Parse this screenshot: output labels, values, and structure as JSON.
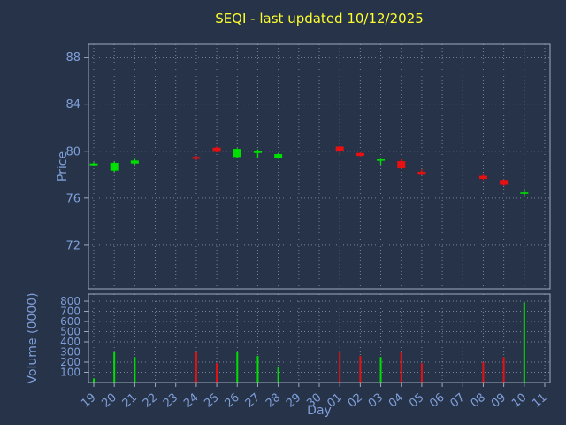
{
  "title": "SEQI - last updated 10/12/2025",
  "axes": {
    "price_label": "Price",
    "volume_label": "Volume (0000)",
    "x_label": "Day"
  },
  "colors": {
    "background": "#273349",
    "grid": "#cfd6e0",
    "border": "#9fabbd",
    "tick_text": "#7e9fd8",
    "title_text": "#ffff2e",
    "up": "#00e000",
    "down": "#e81010"
  },
  "chart_data": {
    "type": "candlestick",
    "title": "SEQI - last updated 10/12/2025",
    "xlabel": "Day",
    "ylabel_price": "Price",
    "ylabel_volume": "Volume (0000)",
    "legend": "none",
    "grid": "dotted",
    "x_ticklabels": [
      "19",
      "20",
      "21",
      "22",
      "23",
      "24",
      "25",
      "26",
      "27",
      "28",
      "29",
      "30",
      "01",
      "02",
      "03",
      "04",
      "05",
      "06",
      "07",
      "08",
      "09",
      "10",
      "11"
    ],
    "price_ticks": [
      72,
      76,
      80,
      84,
      88
    ],
    "price_ylim": [
      68.3,
      89.1
    ],
    "volume_ticks": [
      100,
      200,
      300,
      400,
      500,
      600,
      700,
      800
    ],
    "volume_ylim": [
      0,
      870
    ],
    "candles": [
      {
        "day": "19",
        "i": 0,
        "open": 78.8,
        "high": 79.05,
        "low": 78.7,
        "close": 78.95,
        "dir": "up",
        "volume": 40
      },
      {
        "day": "20",
        "i": 1,
        "open": 78.35,
        "high": 79.1,
        "low": 78.25,
        "close": 79.0,
        "dir": "up",
        "volume": 300
      },
      {
        "day": "21",
        "i": 2,
        "open": 78.95,
        "high": 79.35,
        "low": 78.85,
        "close": 79.2,
        "dir": "up",
        "volume": 250
      },
      {
        "day": "24",
        "i": 5,
        "open": 79.5,
        "high": 79.6,
        "low": 79.25,
        "close": 79.35,
        "dir": "down",
        "volume": 300
      },
      {
        "day": "25",
        "i": 6,
        "open": 80.3,
        "high": 80.4,
        "low": 79.9,
        "close": 79.95,
        "dir": "down",
        "volume": 190
      },
      {
        "day": "26",
        "i": 7,
        "open": 79.5,
        "high": 80.25,
        "low": 79.45,
        "close": 80.2,
        "dir": "up",
        "volume": 300
      },
      {
        "day": "27",
        "i": 8,
        "open": 79.85,
        "high": 80.15,
        "low": 79.4,
        "close": 80.05,
        "dir": "up",
        "volume": 260
      },
      {
        "day": "28",
        "i": 9,
        "open": 79.45,
        "high": 79.85,
        "low": 79.35,
        "close": 79.75,
        "dir": "up",
        "volume": 150
      },
      {
        "day": "01",
        "i": 12,
        "open": 80.4,
        "high": 80.45,
        "low": 79.8,
        "close": 80.0,
        "dir": "down",
        "volume": 300
      },
      {
        "day": "02",
        "i": 13,
        "open": 79.85,
        "high": 79.9,
        "low": 79.55,
        "close": 79.6,
        "dir": "down",
        "volume": 260
      },
      {
        "day": "03",
        "i": 14,
        "open": 79.25,
        "high": 79.35,
        "low": 78.85,
        "close": 79.3,
        "dir": "up",
        "volume": 250
      },
      {
        "day": "04",
        "i": 15,
        "open": 79.15,
        "high": 79.3,
        "low": 78.5,
        "close": 78.55,
        "dir": "down",
        "volume": 300
      },
      {
        "day": "05",
        "i": 16,
        "open": 78.25,
        "high": 78.45,
        "low": 77.95,
        "close": 78.0,
        "dir": "down",
        "volume": 190
      },
      {
        "day": "08",
        "i": 19,
        "open": 77.9,
        "high": 78.0,
        "low": 77.55,
        "close": 77.65,
        "dir": "down",
        "volume": 200
      },
      {
        "day": "09",
        "i": 20,
        "open": 77.55,
        "high": 77.6,
        "low": 77.05,
        "close": 77.15,
        "dir": "down",
        "volume": 250
      },
      {
        "day": "10",
        "i": 21,
        "open": 76.4,
        "high": 76.75,
        "low": 76.15,
        "close": 76.5,
        "dir": "up",
        "volume": 790
      }
    ]
  }
}
